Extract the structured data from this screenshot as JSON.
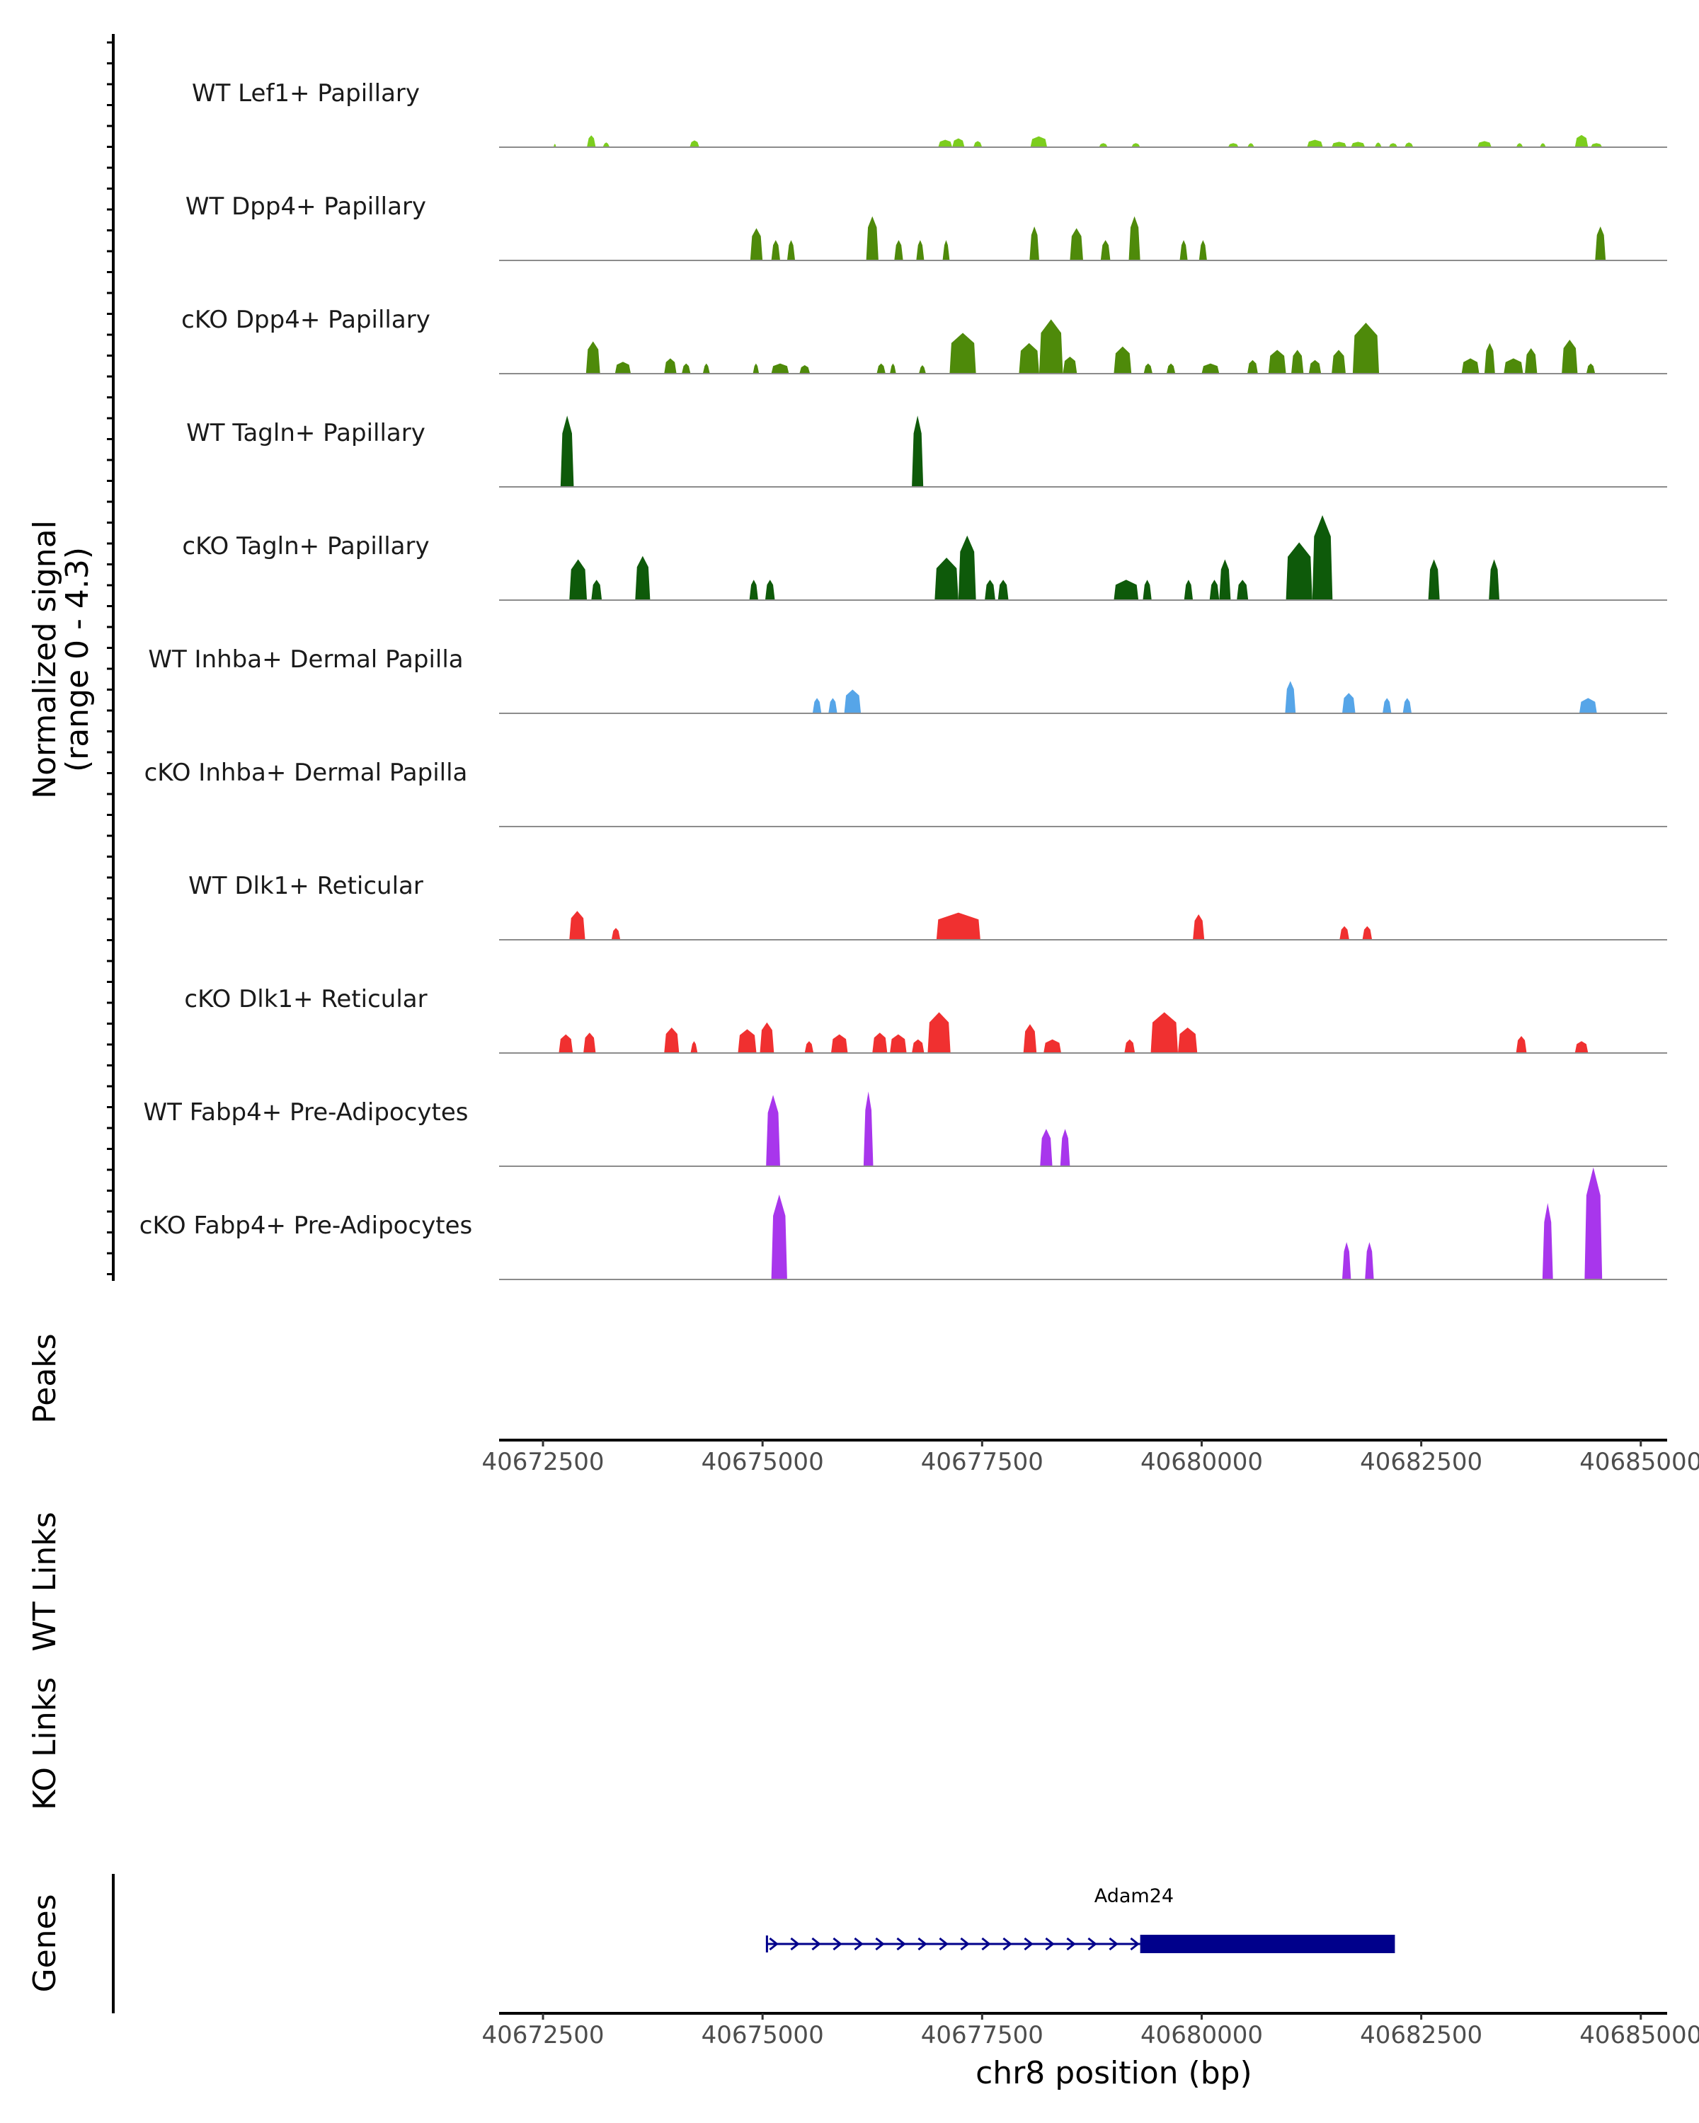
{
  "chart_data": {
    "type": "coverage",
    "region": {
      "chromosome": "chr8",
      "start": 40672000,
      "end": 40685300
    },
    "y_axis_title": [
      "Normalized signal",
      "(range 0 - 4.3)"
    ],
    "y_range": [
      0,
      4.3
    ],
    "tracks": [
      {
        "name": "WT Lef1+ Papillary",
        "color": "#7CCD1E",
        "peaks": [
          [
            40672620,
            40672650,
            0.1
          ],
          [
            40673000,
            40673100,
            0.35
          ],
          [
            40673180,
            40673260,
            0.14
          ],
          [
            40674170,
            40674280,
            0.2
          ],
          [
            40677000,
            40677160,
            0.22
          ],
          [
            40677160,
            40677300,
            0.26
          ],
          [
            40677400,
            40677500,
            0.18
          ],
          [
            40678050,
            40678240,
            0.32
          ],
          [
            40678830,
            40678930,
            0.12
          ],
          [
            40679200,
            40679300,
            0.12
          ],
          [
            40680300,
            40680420,
            0.12
          ],
          [
            40680520,
            40680600,
            0.12
          ],
          [
            40681200,
            40681380,
            0.22
          ],
          [
            40681480,
            40681650,
            0.16
          ],
          [
            40681700,
            40681860,
            0.16
          ],
          [
            40681970,
            40682050,
            0.14
          ],
          [
            40682130,
            40682230,
            0.12
          ],
          [
            40682310,
            40682410,
            0.14
          ],
          [
            40683140,
            40683300,
            0.18
          ],
          [
            40683580,
            40683660,
            0.12
          ],
          [
            40683850,
            40683920,
            0.12
          ],
          [
            40684250,
            40684400,
            0.36
          ],
          [
            40684430,
            40684560,
            0.12
          ]
        ]
      },
      {
        "name": "WT Dpp4+ Papillary",
        "color": "#4E8A0A",
        "peaks": [
          [
            40674860,
            40675000,
            0.95
          ],
          [
            40675100,
            40675200,
            0.6
          ],
          [
            40675280,
            40675370,
            0.6
          ],
          [
            40676180,
            40676320,
            1.3
          ],
          [
            40676500,
            40676600,
            0.6
          ],
          [
            40676750,
            40676840,
            0.6
          ],
          [
            40677050,
            40677130,
            0.6
          ],
          [
            40678040,
            40678150,
            1.0
          ],
          [
            40678500,
            40678650,
            0.95
          ],
          [
            40678850,
            40678960,
            0.6
          ],
          [
            40679170,
            40679300,
            1.3
          ],
          [
            40679750,
            40679840,
            0.6
          ],
          [
            40679970,
            40680060,
            0.6
          ],
          [
            40684480,
            40684600,
            1.0
          ]
        ]
      },
      {
        "name": "cKO Dpp4+ Papillary",
        "color": "#4E8A0A",
        "peaks": [
          [
            40672990,
            40673150,
            0.95
          ],
          [
            40673320,
            40673500,
            0.35
          ],
          [
            40673880,
            40674020,
            0.45
          ],
          [
            40674080,
            40674180,
            0.3
          ],
          [
            40674320,
            40674400,
            0.3
          ],
          [
            40674890,
            40674960,
            0.3
          ],
          [
            40675100,
            40675300,
            0.3
          ],
          [
            40675420,
            40675540,
            0.25
          ],
          [
            40676300,
            40676400,
            0.3
          ],
          [
            40676450,
            40676520,
            0.3
          ],
          [
            40676780,
            40676860,
            0.25
          ],
          [
            40677130,
            40677430,
            1.2
          ],
          [
            40677920,
            40678150,
            0.9
          ],
          [
            40678150,
            40678420,
            1.6
          ],
          [
            40678420,
            40678580,
            0.5
          ],
          [
            40679000,
            40679200,
            0.8
          ],
          [
            40679340,
            40679440,
            0.3
          ],
          [
            40679600,
            40679700,
            0.3
          ],
          [
            40680000,
            40680200,
            0.3
          ],
          [
            40680520,
            40680640,
            0.4
          ],
          [
            40680760,
            40680960,
            0.7
          ],
          [
            40681020,
            40681160,
            0.7
          ],
          [
            40681220,
            40681360,
            0.4
          ],
          [
            40681480,
            40681640,
            0.7
          ],
          [
            40681720,
            40682020,
            1.5
          ],
          [
            40682960,
            40683160,
            0.45
          ],
          [
            40683220,
            40683340,
            0.9
          ],
          [
            40683440,
            40683660,
            0.45
          ],
          [
            40683680,
            40683820,
            0.75
          ],
          [
            40684100,
            40684280,
            1.0
          ],
          [
            40684380,
            40684480,
            0.3
          ]
        ]
      },
      {
        "name": "WT Tagln+ Papillary",
        "color": "#0E5A0A",
        "peaks": [
          [
            40672700,
            40672850,
            2.1
          ],
          [
            40676700,
            40676830,
            2.1
          ]
        ]
      },
      {
        "name": "cKO Tagln+ Papillary",
        "color": "#0E5A0A",
        "peaks": [
          [
            40672800,
            40673000,
            1.2
          ],
          [
            40673050,
            40673170,
            0.6
          ],
          [
            40673550,
            40673720,
            1.3
          ],
          [
            40674850,
            40674950,
            0.6
          ],
          [
            40675030,
            40675140,
            0.6
          ],
          [
            40676960,
            40677230,
            1.25
          ],
          [
            40677230,
            40677430,
            1.9
          ],
          [
            40677530,
            40677650,
            0.6
          ],
          [
            40677680,
            40677800,
            0.6
          ],
          [
            40679000,
            40679280,
            0.6
          ],
          [
            40679330,
            40679430,
            0.6
          ],
          [
            40679800,
            40679900,
            0.6
          ],
          [
            40680090,
            40680200,
            0.6
          ],
          [
            40680200,
            40680330,
            1.2
          ],
          [
            40680400,
            40680530,
            0.6
          ],
          [
            40680960,
            40681260,
            1.7
          ],
          [
            40681260,
            40681490,
            2.5
          ],
          [
            40682580,
            40682710,
            1.2
          ],
          [
            40683270,
            40683390,
            1.2
          ]
        ]
      },
      {
        "name": "WT Inhba+ Dermal Papilla",
        "color": "#56A5E8",
        "peaks": [
          [
            40675570,
            40675670,
            0.45
          ],
          [
            40675750,
            40675850,
            0.45
          ],
          [
            40675930,
            40676120,
            0.7
          ],
          [
            40680950,
            40681070,
            0.95
          ],
          [
            40681600,
            40681750,
            0.6
          ],
          [
            40682060,
            40682160,
            0.45
          ],
          [
            40682290,
            40682390,
            0.45
          ],
          [
            40684300,
            40684500,
            0.45
          ]
        ]
      },
      {
        "name": "cKO Inhba+ Dermal Papilla",
        "color": "#56A5E8",
        "peaks": []
      },
      {
        "name": "WT Dlk1+ Reticular",
        "color": "#F03030",
        "peaks": [
          [
            40672800,
            40672980,
            0.85
          ],
          [
            40673280,
            40673380,
            0.35
          ],
          [
            40676980,
            40677480,
            0.8
          ],
          [
            40679900,
            40680030,
            0.75
          ],
          [
            40681570,
            40681680,
            0.4
          ],
          [
            40681830,
            40681940,
            0.4
          ]
        ]
      },
      {
        "name": "cKO Dlk1+ Reticular",
        "color": "#F03030",
        "peaks": [
          [
            40672680,
            40672840,
            0.55
          ],
          [
            40672960,
            40673100,
            0.6
          ],
          [
            40673880,
            40674050,
            0.75
          ],
          [
            40674180,
            40674260,
            0.35
          ],
          [
            40674720,
            40674930,
            0.7
          ],
          [
            40674970,
            40675130,
            0.9
          ],
          [
            40675480,
            40675580,
            0.35
          ],
          [
            40675780,
            40675970,
            0.55
          ],
          [
            40676250,
            40676420,
            0.6
          ],
          [
            40676450,
            40676640,
            0.55
          ],
          [
            40676700,
            40676840,
            0.4
          ],
          [
            40676880,
            40677140,
            1.2
          ],
          [
            40677970,
            40678120,
            0.85
          ],
          [
            40678200,
            40678400,
            0.4
          ],
          [
            40679120,
            40679240,
            0.4
          ],
          [
            40679420,
            40679730,
            1.2
          ],
          [
            40679730,
            40679950,
            0.75
          ],
          [
            40683580,
            40683700,
            0.5
          ],
          [
            40684250,
            40684400,
            0.35
          ]
        ]
      },
      {
        "name": "WT Fabp4+ Pre-Adipocytes",
        "color": "#A836EC",
        "peaks": [
          [
            40675040,
            40675200,
            2.1
          ],
          [
            40676150,
            40676260,
            2.2
          ],
          [
            40678160,
            40678300,
            1.1
          ],
          [
            40678390,
            40678500,
            1.1
          ]
        ]
      },
      {
        "name": "cKO Fabp4+ Pre-Adipocytes",
        "color": "#A836EC",
        "peaks": [
          [
            40675100,
            40675280,
            2.5
          ],
          [
            40681600,
            40681700,
            1.1
          ],
          [
            40681860,
            40681960,
            1.1
          ],
          [
            40683880,
            40684000,
            2.25
          ],
          [
            40684360,
            40684560,
            3.3
          ]
        ]
      }
    ],
    "peaks_track_label": "Peaks",
    "x_axis": {
      "ticks": [
        40672500,
        40675000,
        40677500,
        40680000,
        40682500,
        40685000
      ],
      "tick_labels": [
        "40672500",
        "40675000",
        "40677500",
        "40680000",
        "40682500",
        "40685000"
      ],
      "label": "chr8 position (bp)"
    },
    "links_tracks": [
      "WT Links",
      "KO Links"
    ],
    "genes_track": {
      "label": "Genes",
      "genes": [
        {
          "name": "Adam24",
          "start": 40675050,
          "end": 40682200,
          "cds_start": 40679300,
          "cds_end": 40682200,
          "strand": "+",
          "color": "#00008B"
        }
      ]
    }
  }
}
